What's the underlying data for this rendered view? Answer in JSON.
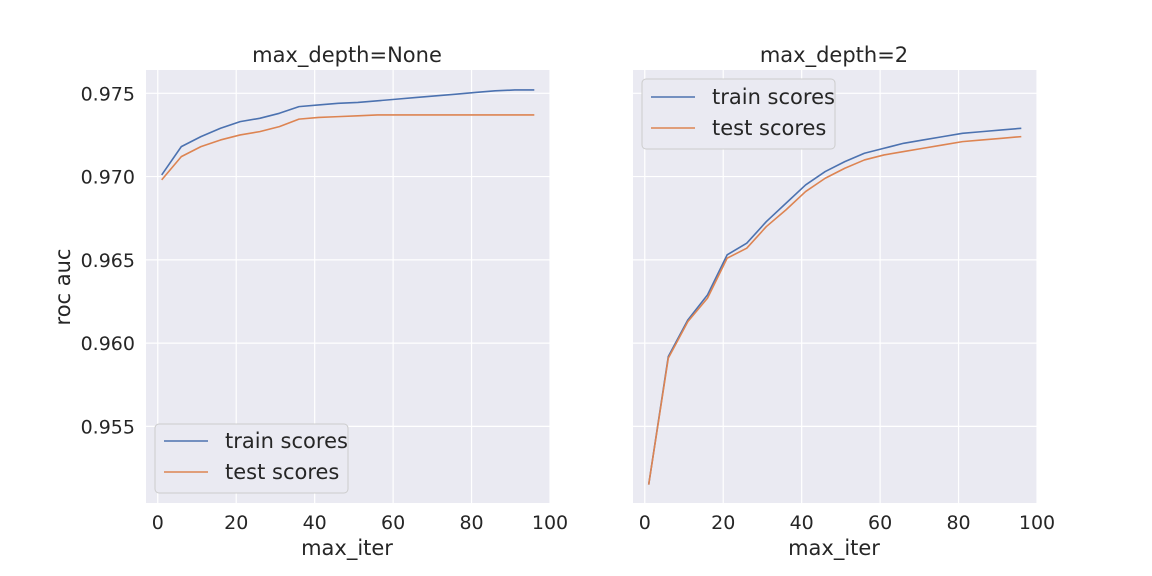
{
  "chart_data": [
    {
      "type": "line",
      "title": "max_depth=None",
      "xlabel": "max_iter",
      "ylabel": "roc auc",
      "xlim": [
        -3,
        100
      ],
      "ylim": [
        0.9504,
        0.9764
      ],
      "xticks": [
        0,
        20,
        40,
        60,
        80,
        100
      ],
      "yticks": [
        0.955,
        0.96,
        0.965,
        0.97,
        0.975
      ],
      "ytick_labels": [
        "0.955",
        "0.960",
        "0.965",
        "0.970",
        "0.975"
      ],
      "grid": true,
      "legend_position": "lower-left",
      "x": [
        1,
        6,
        11,
        16,
        21,
        26,
        31,
        36,
        41,
        46,
        51,
        56,
        61,
        66,
        71,
        76,
        81,
        86,
        91,
        96
      ],
      "series": [
        {
          "name": "train scores",
          "color": "#4c72b0",
          "values": [
            0.9701,
            0.9718,
            0.9724,
            0.9729,
            0.9733,
            0.9735,
            0.9738,
            0.9742,
            0.9743,
            0.9744,
            0.97445,
            0.97455,
            0.97465,
            0.97475,
            0.97485,
            0.97495,
            0.97505,
            0.97515,
            0.9752,
            0.9752
          ]
        },
        {
          "name": "test scores",
          "color": "#dd8452",
          "values": [
            0.9698,
            0.9712,
            0.9718,
            0.9722,
            0.9725,
            0.9727,
            0.973,
            0.97345,
            0.97355,
            0.9736,
            0.97365,
            0.9737,
            0.9737,
            0.9737,
            0.9737,
            0.9737,
            0.9737,
            0.9737,
            0.9737,
            0.9737
          ]
        }
      ]
    },
    {
      "type": "line",
      "title": "max_depth=2",
      "xlabel": "max_iter",
      "ylabel": "",
      "xlim": [
        -3,
        100
      ],
      "ylim": [
        0.9504,
        0.9764
      ],
      "xticks": [
        0,
        20,
        40,
        60,
        80,
        100
      ],
      "yticks": [
        0.955,
        0.96,
        0.965,
        0.97,
        0.975
      ],
      "grid": true,
      "legend_position": "upper-left",
      "x": [
        1,
        6,
        11,
        16,
        21,
        26,
        31,
        36,
        41,
        46,
        51,
        56,
        61,
        66,
        71,
        76,
        81,
        86,
        91,
        96
      ],
      "series": [
        {
          "name": "train scores",
          "color": "#4c72b0",
          "values": [
            0.9515,
            0.9592,
            0.9614,
            0.9629,
            0.9653,
            0.966,
            0.9673,
            0.9684,
            0.9695,
            0.9703,
            0.9709,
            0.9714,
            0.9717,
            0.972,
            0.9722,
            0.9724,
            0.9726,
            0.9727,
            0.9728,
            0.9729
          ]
        },
        {
          "name": "test scores",
          "color": "#dd8452",
          "values": [
            0.9515,
            0.9591,
            0.9613,
            0.9627,
            0.9651,
            0.9657,
            0.967,
            0.968,
            0.9691,
            0.9699,
            0.9705,
            0.971,
            0.9713,
            0.9715,
            0.9717,
            0.9719,
            0.9721,
            0.9722,
            0.9723,
            0.9724
          ]
        }
      ]
    }
  ]
}
